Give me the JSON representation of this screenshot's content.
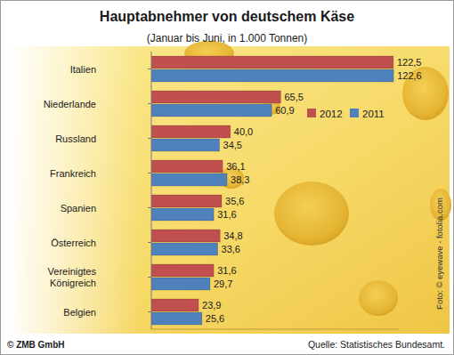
{
  "chart_data": {
    "type": "bar",
    "orientation": "horizontal",
    "title": "Hauptabnehmer von deutschem Käse",
    "subtitle": "(Januar bis Juni, in 1.000 Tonnen)",
    "categories": [
      "Italien",
      "Niederlande",
      "Russland",
      "Frankreich",
      "Spanien",
      "Österreich",
      "Vereinigtes Königreich",
      "Belgien"
    ],
    "series": [
      {
        "name": "2012",
        "color": "#c0504d",
        "values": [
          122.5,
          65.5,
          40.0,
          36.1,
          35.6,
          34.8,
          31.6,
          23.9
        ],
        "value_labels": [
          "122,5",
          "65,5",
          "40,0",
          "36,1",
          "35,6",
          "34,8",
          "31,6",
          "23,9"
        ]
      },
      {
        "name": "2011",
        "color": "#4f81bd",
        "values": [
          122.6,
          60.9,
          34.5,
          38.3,
          31.6,
          33.6,
          29.7,
          25.6
        ],
        "value_labels": [
          "122,6",
          "60,9",
          "34,5",
          "38,3",
          "31,6",
          "33,6",
          "29,7",
          "25,6"
        ]
      }
    ],
    "xlim": [
      0,
      125
    ],
    "xticks": [],
    "tick_labels": "y",
    "data_labels": true,
    "legend": "upper right",
    "grid": false,
    "copyright": "© ZMB GmbH",
    "source": "Quelle: Statistisches Bundesamt.",
    "photo_credit": "Foto: © eyewave - fotolia.com"
  }
}
